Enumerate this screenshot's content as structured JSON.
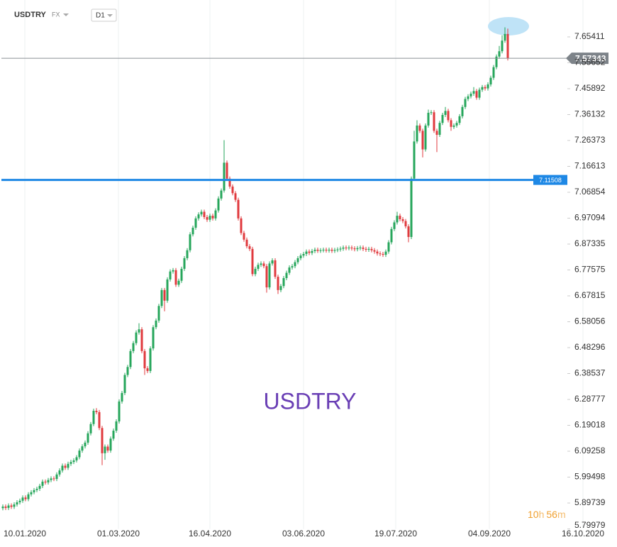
{
  "header": {
    "symbol": "USDTRY",
    "asset_class": "FX",
    "timeframe": "D1"
  },
  "countdown": [
    "10",
    "h",
    "56",
    "m"
  ],
  "chart_data": {
    "type": "candlestick",
    "watermark": "USDTRY",
    "up_color": "#26a65b",
    "down_color": "#e03a3e",
    "xlim": [
      -1,
      216.5
    ],
    "xticks": [
      {
        "value": 7.75,
        "label": "10.01.2020"
      },
      {
        "value": 40.75,
        "label": "01.03.2020"
      },
      {
        "value": 73,
        "label": "16.04.2020"
      },
      {
        "value": 106,
        "label": "03.06.2020"
      },
      {
        "value": 138.5,
        "label": "19.07.2020"
      },
      {
        "value": 171.5,
        "label": "04.09.2020"
      },
      {
        "value": 204.5,
        "label": "16.10.2020"
      }
    ],
    "ylim": [
      5.79979,
      7.7931
    ],
    "yticks": [
      7.65411,
      7.55652,
      7.45892,
      7.36132,
      7.26373,
      7.16613,
      7.06854,
      6.97094,
      6.87335,
      6.77575,
      6.67815,
      6.58056,
      6.48296,
      6.38537,
      6.28777,
      6.19018,
      6.09258,
      5.99498,
      5.89739,
      5.79979
    ],
    "grid": true,
    "hlines": [
      {
        "value": 7.11508,
        "color": "#1e88e5"
      }
    ],
    "open": [
      5.878,
      5.884,
      5.879,
      5.888,
      5.883,
      5.892,
      5.9,
      5.906,
      5.918,
      5.912,
      5.93,
      5.938,
      5.946,
      5.951,
      5.962,
      5.978,
      5.975,
      5.984,
      5.99,
      5.988,
      6.005,
      6.02,
      6.038,
      6.03,
      6.045,
      6.052,
      6.058,
      6.07,
      6.095,
      6.111,
      6.125,
      6.16,
      6.195,
      6.245,
      6.24,
      6.18,
      6.085,
      6.11,
      6.095,
      6.14,
      6.17,
      6.205,
      6.28,
      6.312,
      6.38,
      6.41,
      6.47,
      6.5,
      6.54,
      6.552,
      6.47,
      6.405,
      6.395,
      6.48,
      6.56,
      6.585,
      6.64,
      6.7,
      6.66,
      6.74,
      6.77,
      6.775,
      6.72,
      6.735,
      6.78,
      6.82,
      6.85,
      6.91,
      6.935,
      6.97,
      6.985,
      6.995,
      6.975,
      6.965,
      6.98,
      6.97,
      7.0,
      7.045,
      7.075,
      7.18,
      7.12,
      7.09,
      7.065,
      7.04,
      6.97,
      6.915,
      6.89,
      6.865,
      6.855,
      6.76,
      6.78,
      6.795,
      6.8,
      6.79,
      6.71,
      6.8,
      6.812,
      6.75,
      6.7,
      6.715,
      6.745,
      6.765,
      6.785,
      6.79,
      6.805,
      6.82,
      6.83,
      6.836,
      6.845,
      6.84,
      6.847,
      6.852,
      6.848,
      6.85,
      6.852,
      6.849,
      6.852,
      6.848,
      6.851,
      6.853,
      6.856,
      6.86,
      6.858,
      6.86,
      6.857,
      6.854,
      6.858,
      6.86,
      6.855,
      6.852,
      6.855,
      6.85,
      6.845,
      6.838,
      6.836,
      6.833,
      6.845,
      6.88,
      6.93,
      6.955,
      6.98,
      6.967,
      6.96,
      6.94,
      6.9,
      7.12,
      7.26,
      7.32,
      7.3,
      7.23,
      7.32,
      7.368,
      7.37,
      7.3,
      7.285,
      7.33,
      7.36,
      7.375,
      7.34,
      7.315,
      7.32,
      7.33,
      7.355,
      7.39,
      7.42,
      7.43,
      7.44,
      7.45,
      7.425,
      7.455,
      7.465,
      7.46,
      7.475,
      7.5,
      7.54,
      7.58,
      7.6,
      7.64,
      7.665
    ],
    "high": [
      5.892,
      5.892,
      5.896,
      5.896,
      5.9,
      5.908,
      5.914,
      5.926,
      5.926,
      5.938,
      5.946,
      5.954,
      5.959,
      5.97,
      5.986,
      5.986,
      5.992,
      5.998,
      5.998,
      6.013,
      6.028,
      6.046,
      6.046,
      6.053,
      6.06,
      6.066,
      6.078,
      6.103,
      6.119,
      6.133,
      6.168,
      6.203,
      6.253,
      6.255,
      6.248,
      6.188,
      6.118,
      6.118,
      6.148,
      6.178,
      6.213,
      6.288,
      6.32,
      6.388,
      6.418,
      6.478,
      6.508,
      6.548,
      6.575,
      6.56,
      6.478,
      6.413,
      6.488,
      6.568,
      6.593,
      6.648,
      6.708,
      6.708,
      6.748,
      6.778,
      6.783,
      6.783,
      6.743,
      6.788,
      6.828,
      6.858,
      6.918,
      6.943,
      6.978,
      6.993,
      7.003,
      7.003,
      6.983,
      6.988,
      6.988,
      7.008,
      7.053,
      7.083,
      7.265,
      7.188,
      7.128,
      7.098,
      7.073,
      7.048,
      6.978,
      6.923,
      6.898,
      6.873,
      6.863,
      6.788,
      6.803,
      6.808,
      6.808,
      6.798,
      6.808,
      6.82,
      6.82,
      6.758,
      6.723,
      6.753,
      6.773,
      6.793,
      6.798,
      6.813,
      6.828,
      6.838,
      6.844,
      6.853,
      6.853,
      6.855,
      6.86,
      6.86,
      6.858,
      6.86,
      6.86,
      6.86,
      6.86,
      6.859,
      6.861,
      6.864,
      6.868,
      6.868,
      6.868,
      6.868,
      6.865,
      6.866,
      6.868,
      6.868,
      6.863,
      6.863,
      6.863,
      6.858,
      6.853,
      6.846,
      6.844,
      6.853,
      6.888,
      6.938,
      6.963,
      6.995,
      6.988,
      6.975,
      6.968,
      6.948,
      7.128,
      7.3,
      7.34,
      7.328,
      7.308,
      7.328,
      7.38,
      7.378,
      7.378,
      7.308,
      7.338,
      7.368,
      7.39,
      7.383,
      7.348,
      7.328,
      7.338,
      7.363,
      7.398,
      7.428,
      7.438,
      7.448,
      7.465,
      7.458,
      7.463,
      7.473,
      7.473,
      7.483,
      7.508,
      7.548,
      7.588,
      7.62,
      7.66,
      7.69,
      7.685
    ],
    "low": [
      5.87,
      5.871,
      5.871,
      5.875,
      5.875,
      5.884,
      5.892,
      5.898,
      5.904,
      5.904,
      5.922,
      5.93,
      5.938,
      5.943,
      5.954,
      5.967,
      5.967,
      5.976,
      5.98,
      5.98,
      5.997,
      6.012,
      6.022,
      6.022,
      6.037,
      6.044,
      6.05,
      6.062,
      6.087,
      6.103,
      6.117,
      6.152,
      6.187,
      6.232,
      6.172,
      6.04,
      6.06,
      6.087,
      6.087,
      6.132,
      6.162,
      6.197,
      6.272,
      6.304,
      6.372,
      6.402,
      6.462,
      6.492,
      6.532,
      6.462,
      6.38,
      6.387,
      6.387,
      6.472,
      6.552,
      6.577,
      6.632,
      6.62,
      6.652,
      6.732,
      6.762,
      6.712,
      6.712,
      6.727,
      6.772,
      6.812,
      6.842,
      6.902,
      6.927,
      6.962,
      6.977,
      6.967,
      6.957,
      6.957,
      6.962,
      6.962,
      6.992,
      7.037,
      7.067,
      7.112,
      7.082,
      7.057,
      7.032,
      6.962,
      6.907,
      6.882,
      6.857,
      6.847,
      6.752,
      6.752,
      6.772,
      6.787,
      6.782,
      6.69,
      6.702,
      6.792,
      6.742,
      6.685,
      6.692,
      6.707,
      6.737,
      6.757,
      6.777,
      6.782,
      6.797,
      6.812,
      6.822,
      6.828,
      6.832,
      6.832,
      6.839,
      6.84,
      6.84,
      6.842,
      6.841,
      6.841,
      6.84,
      6.84,
      6.843,
      6.845,
      6.848,
      6.85,
      6.85,
      6.849,
      6.846,
      6.846,
      6.85,
      6.847,
      6.844,
      6.844,
      6.842,
      6.837,
      6.83,
      6.828,
      6.825,
      6.825,
      6.837,
      6.872,
      6.922,
      6.947,
      6.959,
      6.952,
      6.932,
      6.88,
      6.892,
      7.112,
      7.252,
      7.292,
      7.2,
      7.222,
      7.312,
      7.36,
      7.292,
      7.22,
      7.277,
      7.322,
      7.352,
      7.332,
      7.3,
      7.307,
      7.312,
      7.322,
      7.347,
      7.382,
      7.412,
      7.422,
      7.432,
      7.417,
      7.417,
      7.447,
      7.452,
      7.452,
      7.467,
      7.492,
      7.532,
      7.572,
      7.592,
      7.632,
      7.565
    ],
    "close": [
      5.884,
      5.879,
      5.888,
      5.883,
      5.892,
      5.9,
      5.906,
      5.918,
      5.912,
      5.93,
      5.938,
      5.946,
      5.951,
      5.962,
      5.978,
      5.975,
      5.984,
      5.99,
      5.988,
      6.005,
      6.02,
      6.038,
      6.03,
      6.045,
      6.052,
      6.058,
      6.07,
      6.095,
      6.111,
      6.125,
      6.16,
      6.195,
      6.245,
      6.24,
      6.18,
      6.085,
      6.11,
      6.095,
      6.14,
      6.17,
      6.205,
      6.28,
      6.312,
      6.38,
      6.41,
      6.47,
      6.5,
      6.54,
      6.552,
      6.47,
      6.405,
      6.395,
      6.48,
      6.56,
      6.585,
      6.64,
      6.7,
      6.66,
      6.74,
      6.77,
      6.775,
      6.72,
      6.735,
      6.78,
      6.82,
      6.85,
      6.91,
      6.935,
      6.97,
      6.985,
      6.995,
      6.975,
      6.965,
      6.98,
      6.97,
      7.0,
      7.045,
      7.075,
      7.18,
      7.12,
      7.09,
      7.065,
      7.04,
      6.97,
      6.915,
      6.89,
      6.865,
      6.855,
      6.76,
      6.78,
      6.795,
      6.8,
      6.79,
      6.71,
      6.8,
      6.812,
      6.75,
      6.7,
      6.715,
      6.745,
      6.765,
      6.785,
      6.79,
      6.805,
      6.82,
      6.83,
      6.836,
      6.845,
      6.84,
      6.847,
      6.852,
      6.848,
      6.85,
      6.852,
      6.849,
      6.852,
      6.848,
      6.851,
      6.853,
      6.856,
      6.86,
      6.858,
      6.86,
      6.857,
      6.854,
      6.858,
      6.86,
      6.855,
      6.852,
      6.855,
      6.85,
      6.845,
      6.838,
      6.836,
      6.833,
      6.845,
      6.88,
      6.93,
      6.955,
      6.98,
      6.967,
      6.96,
      6.94,
      6.9,
      7.12,
      7.26,
      7.32,
      7.3,
      7.23,
      7.32,
      7.368,
      7.37,
      7.3,
      7.285,
      7.33,
      7.36,
      7.375,
      7.34,
      7.315,
      7.32,
      7.33,
      7.355,
      7.39,
      7.42,
      7.43,
      7.44,
      7.45,
      7.425,
      7.455,
      7.465,
      7.46,
      7.475,
      7.5,
      7.54,
      7.58,
      7.6,
      7.64,
      7.665,
      7.57343
    ]
  }
}
